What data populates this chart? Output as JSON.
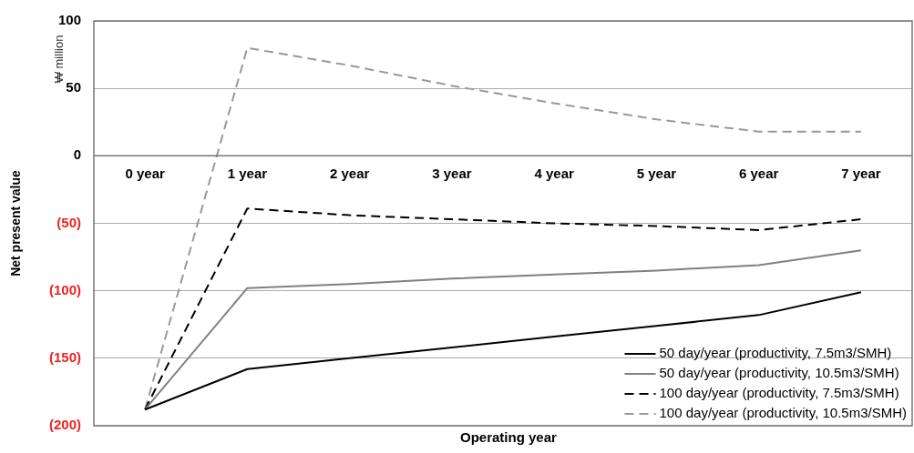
{
  "chart_data": {
    "type": "line",
    "xlabel": "Operating year",
    "ylabel": "Net present value",
    "annotations": [
      "₩ million"
    ],
    "categories": [
      "0 year",
      "1 year",
      "2 year",
      "3 year",
      "4 year",
      "5 year",
      "6 year",
      "7 year"
    ],
    "series": [
      {
        "name": "50 day/year (productivity, 7.5m3/SMH)",
        "color": "#000000",
        "line_style": "solid",
        "values": [
          -188,
          -158,
          -150,
          -142,
          -134,
          -126,
          -118,
          -101
        ]
      },
      {
        "name": "50 day/year (productivity, 10.5m3/SMH)",
        "color": "#808080",
        "line_style": "solid",
        "values": [
          -188,
          -98,
          -95,
          -91,
          -88,
          -85,
          -81,
          -70
        ]
      },
      {
        "name": "100 day/year (productivity, 7.5m3/SMH)",
        "color": "#000000",
        "line_style": "dashed",
        "values": [
          -188,
          -39,
          -44,
          -47,
          -50,
          -52,
          -55,
          -47
        ]
      },
      {
        "name": "100 day/year (productivity, 10.5m3/SMH)",
        "color": "#999999",
        "line_style": "dashed",
        "values": [
          -188,
          80,
          67,
          52,
          39,
          27,
          18,
          18
        ]
      }
    ],
    "ylim": [
      -200,
      100
    ],
    "yticks": [
      {
        "value": -200,
        "label": "(200)"
      },
      {
        "value": -150,
        "label": "(150)"
      },
      {
        "value": -100,
        "label": "(100)"
      },
      {
        "value": -50,
        "label": "(50)"
      },
      0,
      50,
      100
    ],
    "grid": "y",
    "legend": "bottom right",
    "marker": "none"
  }
}
